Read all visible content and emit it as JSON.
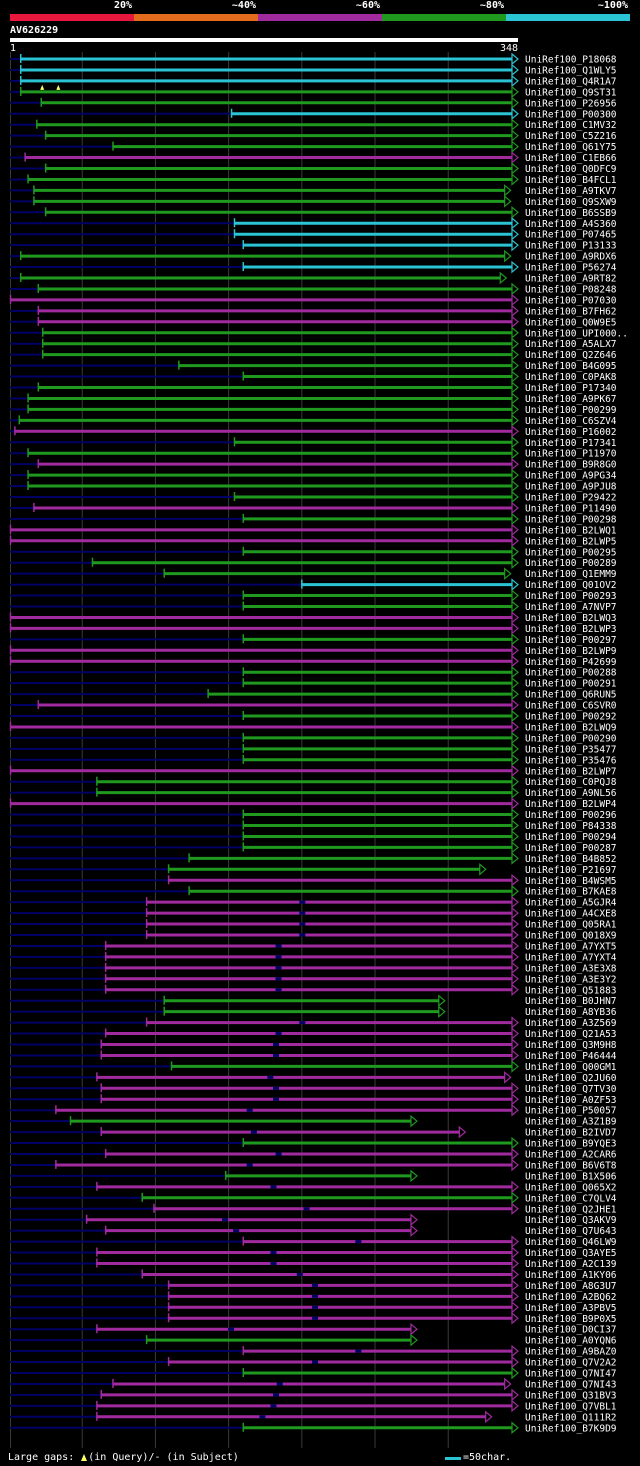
{
  "query": {
    "id": "AV626229",
    "length": 348,
    "start_label": "1",
    "end_label": "348"
  },
  "identity_scale": [
    {
      "label": "20%",
      "color": "#e8173c"
    },
    {
      "label": "~40%",
      "color": "#e46c1c"
    },
    {
      "label": "~60%",
      "color": "#a12a9f"
    },
    {
      "label": "~80%",
      "color": "#1f9a1f"
    },
    {
      "label": "~100%",
      "color": "#2bc4d4"
    }
  ],
  "colors": {
    "cyan": "#2bc4d4",
    "green": "#1f9a1f",
    "magenta": "#a12a9f",
    "gap": "#000066",
    "insert": "#ffff66",
    "grid": "#3a3a3a"
  },
  "hits": [
    {
      "name": "UniRef100_P18068",
      "c": "cyan",
      "s": 8,
      "e": 348,
      "q": [],
      "t": 0
    },
    {
      "name": "UniRef100_Q1WLY5",
      "c": "cyan",
      "s": 8,
      "e": 348,
      "q": [],
      "t": 0
    },
    {
      "name": "UniRef100_Q4R1A7",
      "c": "cyan",
      "s": 8,
      "e": 348,
      "q": [],
      "t": 0
    },
    {
      "name": "UniRef100_Q9ST31",
      "c": "green",
      "s": 8,
      "e": 348,
      "q": [
        23,
        34
      ],
      "t": 0
    },
    {
      "name": "UniRef100_P26956",
      "c": "green",
      "s": 22,
      "e": 348,
      "q": [],
      "t": 0
    },
    {
      "name": "UniRef100_P00300",
      "c": "cyan",
      "s": 152,
      "e": 348,
      "q": [],
      "t": 0
    },
    {
      "name": "UniRef100_C1MV32",
      "c": "green",
      "s": 19,
      "e": 348,
      "q": [],
      "t": 0
    },
    {
      "name": "UniRef100_C5Z216",
      "c": "green",
      "s": 25,
      "e": 348,
      "q": [],
      "t": 0
    },
    {
      "name": "UniRef100_Q61Y75",
      "c": "green",
      "s": 71,
      "e": 348,
      "q": [],
      "t": 0
    },
    {
      "name": "UniRef100_C1EB66",
      "c": "magenta",
      "s": 11,
      "e": 348,
      "q": [],
      "t": 0
    },
    {
      "name": "UniRef100_Q0DFC9",
      "c": "green",
      "s": 25,
      "e": 348,
      "q": [],
      "t": 0
    },
    {
      "name": "UniRef100_B4FCL1",
      "c": "green",
      "s": 13,
      "e": 348,
      "q": [],
      "t": 0
    },
    {
      "name": "UniRef100_A9TKV7",
      "c": "green",
      "s": 17,
      "e": 343,
      "q": [],
      "t": 0
    },
    {
      "name": "UniRef100_Q9SXW9",
      "c": "green",
      "s": 17,
      "e": 343,
      "q": [],
      "t": 0
    },
    {
      "name": "UniRef100_B6SSB9",
      "c": "green",
      "s": 25,
      "e": 348,
      "q": [],
      "t": 0
    },
    {
      "name": "UniRef100_A4S360",
      "c": "cyan",
      "s": 154,
      "e": 348,
      "q": [],
      "t": 0
    },
    {
      "name": "UniRef100_P07465",
      "c": "cyan",
      "s": 154,
      "e": 348,
      "q": [],
      "t": 0
    },
    {
      "name": "UniRef100_P13133",
      "c": "cyan",
      "s": 160,
      "e": 348,
      "q": [],
      "t": 0
    },
    {
      "name": "UniRef100_A9RDX6",
      "c": "green",
      "s": 8,
      "e": 343,
      "q": [],
      "t": 0
    },
    {
      "name": "UniRef100_P56274",
      "c": "cyan",
      "s": 160,
      "e": 348,
      "q": [],
      "t": 0
    },
    {
      "name": "UniRef100_A9RT82",
      "c": "green",
      "s": 8,
      "e": 340,
      "q": [],
      "t": 0
    },
    {
      "name": "UniRef100_P08248",
      "c": "green",
      "s": 20,
      "e": 348,
      "q": [],
      "t": 0
    },
    {
      "name": "UniRef100_P07030",
      "c": "magenta",
      "s": 1,
      "e": 348,
      "q": [],
      "t": 0
    },
    {
      "name": "UniRef100_B7FH62",
      "c": "magenta",
      "s": 20,
      "e": 348,
      "q": [],
      "t": 0
    },
    {
      "name": "UniRef100_Q0W9E5",
      "c": "magenta",
      "s": 20,
      "e": 348,
      "q": [],
      "t": 0
    },
    {
      "name": "UniRef100_UPI000..",
      "c": "green",
      "s": 23,
      "e": 348,
      "q": [],
      "t": 0
    },
    {
      "name": "UniRef100_A5ALX7",
      "c": "green",
      "s": 23,
      "e": 348,
      "q": [],
      "t": 0
    },
    {
      "name": "UniRef100_Q2Z646",
      "c": "green",
      "s": 23,
      "e": 348,
      "q": [],
      "t": 0
    },
    {
      "name": "UniRef100_B4G095",
      "c": "green",
      "s": 116,
      "e": 348,
      "q": [],
      "t": 0
    },
    {
      "name": "UniRef100_C0PAK8",
      "c": "green",
      "s": 160,
      "e": 348,
      "q": [],
      "t": 0
    },
    {
      "name": "UniRef100_P17340",
      "c": "green",
      "s": 20,
      "e": 348,
      "q": [],
      "t": 0
    },
    {
      "name": "UniRef100_A9PK67",
      "c": "green",
      "s": 13,
      "e": 348,
      "q": [],
      "t": 0
    },
    {
      "name": "UniRef100_P00299",
      "c": "green",
      "s": 13,
      "e": 348,
      "q": [],
      "t": 0
    },
    {
      "name": "UniRef100_C6SZV4",
      "c": "green",
      "s": 7,
      "e": 348,
      "q": [],
      "t": 0
    },
    {
      "name": "UniRef100_P16002",
      "c": "magenta",
      "s": 4,
      "e": 348,
      "q": [],
      "t": 0
    },
    {
      "name": "UniRef100_P17341",
      "c": "green",
      "s": 154,
      "e": 348,
      "q": [],
      "t": 0
    },
    {
      "name": "UniRef100_P11970",
      "c": "green",
      "s": 13,
      "e": 348,
      "q": [],
      "t": 0
    },
    {
      "name": "UniRef100_B9R8G0",
      "c": "magenta",
      "s": 20,
      "e": 348,
      "q": [],
      "t": 0
    },
    {
      "name": "UniRef100_A9PG34",
      "c": "green",
      "s": 13,
      "e": 348,
      "q": [],
      "t": 0
    },
    {
      "name": "UniRef100_A9PJU8",
      "c": "green",
      "s": 13,
      "e": 348,
      "q": [],
      "t": 0
    },
    {
      "name": "UniRef100_P29422",
      "c": "green",
      "s": 154,
      "e": 348,
      "q": [],
      "t": 0
    },
    {
      "name": "UniRef100_P11490",
      "c": "magenta",
      "s": 17,
      "e": 348,
      "q": [],
      "t": 0
    },
    {
      "name": "UniRef100_P00298",
      "c": "green",
      "s": 160,
      "e": 348,
      "q": [],
      "t": 0
    },
    {
      "name": "UniRef100_B2LWQ1",
      "c": "magenta",
      "s": 1,
      "e": 348,
      "q": [],
      "t": 0
    },
    {
      "name": "UniRef100_B2LWP5",
      "c": "magenta",
      "s": 1,
      "e": 348,
      "q": [],
      "t": 0
    },
    {
      "name": "UniRef100_P00295",
      "c": "green",
      "s": 160,
      "e": 348,
      "q": [],
      "t": 0
    },
    {
      "name": "UniRef100_P00289",
      "c": "green",
      "s": 57,
      "e": 348,
      "q": [],
      "t": 0
    },
    {
      "name": "UniRef100_Q1EMM9",
      "c": "green",
      "s": 106,
      "e": 343,
      "q": [],
      "t": 0
    },
    {
      "name": "UniRef100_Q01OV2",
      "c": "cyan",
      "s": 200,
      "e": 348,
      "q": [],
      "t": 0
    },
    {
      "name": "UniRef100_P00293",
      "c": "green",
      "s": 160,
      "e": 348,
      "q": [],
      "t": 0
    },
    {
      "name": "UniRef100_A7NVP7",
      "c": "green",
      "s": 160,
      "e": 348,
      "q": [],
      "t": 0
    },
    {
      "name": "UniRef100_B2LWQ3",
      "c": "magenta",
      "s": 1,
      "e": 348,
      "q": [],
      "t": 0
    },
    {
      "name": "UniRef100_B2LWP3",
      "c": "magenta",
      "s": 1,
      "e": 348,
      "q": [],
      "t": 0
    },
    {
      "name": "UniRef100_P00297",
      "c": "green",
      "s": 160,
      "e": 348,
      "q": [],
      "t": 0
    },
    {
      "name": "UniRef100_B2LWP9",
      "c": "magenta",
      "s": 1,
      "e": 348,
      "q": [],
      "t": 0
    },
    {
      "name": "UniRef100_P42699",
      "c": "magenta",
      "s": 1,
      "e": 348,
      "q": [],
      "t": 0
    },
    {
      "name": "UniRef100_P00288",
      "c": "green",
      "s": 160,
      "e": 348,
      "q": [],
      "t": 0
    },
    {
      "name": "UniRef100_P00291",
      "c": "green",
      "s": 160,
      "e": 348,
      "q": [],
      "t": 0
    },
    {
      "name": "UniRef100_Q6RUN5",
      "c": "green",
      "s": 136,
      "e": 348,
      "q": [],
      "t": 0
    },
    {
      "name": "UniRef100_C6SVR0",
      "c": "magenta",
      "s": 20,
      "e": 348,
      "q": [],
      "t": 0
    },
    {
      "name": "UniRef100_P00292",
      "c": "green",
      "s": 160,
      "e": 348,
      "q": [],
      "t": 0
    },
    {
      "name": "UniRef100_B2LWQ9",
      "c": "magenta",
      "s": 1,
      "e": 348,
      "q": [],
      "t": 0
    },
    {
      "name": "UniRef100_P00290",
      "c": "green",
      "s": 160,
      "e": 348,
      "q": [],
      "t": 0
    },
    {
      "name": "UniRef100_P35477",
      "c": "green",
      "s": 160,
      "e": 348,
      "q": [],
      "t": 0
    },
    {
      "name": "UniRef100_P35476",
      "c": "green",
      "s": 160,
      "e": 348,
      "q": [],
      "t": 0
    },
    {
      "name": "UniRef100_B2LWP7",
      "c": "magenta",
      "s": 1,
      "e": 348,
      "q": [],
      "t": 0
    },
    {
      "name": "UniRef100_C0PQJ8",
      "c": "green",
      "s": 60,
      "e": 348,
      "q": [],
      "t": 0
    },
    {
      "name": "UniRef100_A9NL56",
      "c": "green",
      "s": 60,
      "e": 348,
      "q": [],
      "t": 0
    },
    {
      "name": "UniRef100_B2LWP4",
      "c": "magenta",
      "s": 1,
      "e": 348,
      "q": [],
      "t": 0
    },
    {
      "name": "UniRef100_P00296",
      "c": "green",
      "s": 160,
      "e": 348,
      "q": [],
      "t": 0
    },
    {
      "name": "UniRef100_P84338",
      "c": "green",
      "s": 160,
      "e": 348,
      "q": [],
      "t": 0
    },
    {
      "name": "UniRef100_P00294",
      "c": "green",
      "s": 160,
      "e": 348,
      "q": [],
      "t": 0
    },
    {
      "name": "UniRef100_P00287",
      "c": "green",
      "s": 160,
      "e": 348,
      "q": [],
      "t": 0
    },
    {
      "name": "UniRef100_B4B852",
      "c": "green",
      "s": 123,
      "e": 348,
      "q": [],
      "t": 0
    },
    {
      "name": "UniRef100_P21697",
      "c": "green",
      "s": 109,
      "e": 326,
      "q": [],
      "t": 0
    },
    {
      "name": "UniRef100_B4WSM5",
      "c": "magenta",
      "s": 109,
      "e": 348,
      "q": [],
      "t": 0
    },
    {
      "name": "UniRef100_B7KAE8",
      "c": "green",
      "s": 123,
      "e": 348,
      "q": [],
      "t": 0
    },
    {
      "name": "UniRef100_A5GJR4",
      "c": "magenta",
      "s": 94,
      "e": 348,
      "q": [],
      "t": 1
    },
    {
      "name": "UniRef100_A4CXE8",
      "c": "magenta",
      "s": 94,
      "e": 348,
      "q": [],
      "t": 1
    },
    {
      "name": "UniRef100_Q05RA1",
      "c": "magenta",
      "s": 94,
      "e": 348,
      "q": [],
      "t": 1
    },
    {
      "name": "UniRef100_Q018X9",
      "c": "magenta",
      "s": 94,
      "e": 348,
      "q": [],
      "t": 1
    },
    {
      "name": "UniRef100_A7YXT5",
      "c": "magenta",
      "s": 66,
      "e": 348,
      "q": [],
      "t": 1
    },
    {
      "name": "UniRef100_A7YXT4",
      "c": "magenta",
      "s": 66,
      "e": 348,
      "q": [],
      "t": 1
    },
    {
      "name": "UniRef100_A3E3X8",
      "c": "magenta",
      "s": 66,
      "e": 348,
      "q": [],
      "t": 1
    },
    {
      "name": "UniRef100_A3E3Y2",
      "c": "magenta",
      "s": 66,
      "e": 348,
      "q": [],
      "t": 1
    },
    {
      "name": "UniRef100_Q51883",
      "c": "magenta",
      "s": 66,
      "e": 348,
      "q": [],
      "t": 1
    },
    {
      "name": "UniRef100_B0JHN7",
      "c": "green",
      "s": 106,
      "e": 298,
      "q": [],
      "t": 0
    },
    {
      "name": "UniRef100_A8YB36",
      "c": "green",
      "s": 106,
      "e": 298,
      "q": [],
      "t": 0
    },
    {
      "name": "UniRef100_A3Z569",
      "c": "magenta",
      "s": 94,
      "e": 348,
      "q": [],
      "t": 1
    },
    {
      "name": "UniRef100_Q21A53",
      "c": "magenta",
      "s": 66,
      "e": 348,
      "q": [],
      "t": 1
    },
    {
      "name": "UniRef100_Q3M9H8",
      "c": "magenta",
      "s": 63,
      "e": 348,
      "q": [],
      "t": 1
    },
    {
      "name": "UniRef100_P46444",
      "c": "magenta",
      "s": 63,
      "e": 348,
      "q": [],
      "t": 1
    },
    {
      "name": "UniRef100_Q00GM1",
      "c": "green",
      "s": 111,
      "e": 348,
      "q": [],
      "t": 0
    },
    {
      "name": "UniRef100_Q2JU60",
      "c": "magenta",
      "s": 60,
      "e": 343,
      "q": [],
      "t": 1
    },
    {
      "name": "UniRef100_Q7TV30",
      "c": "magenta",
      "s": 63,
      "e": 348,
      "q": [],
      "t": 1
    },
    {
      "name": "UniRef100_A0ZF53",
      "c": "magenta",
      "s": 63,
      "e": 348,
      "q": [],
      "t": 1
    },
    {
      "name": "UniRef100_P50057",
      "c": "magenta",
      "s": 32,
      "e": 348,
      "q": [],
      "t": 1
    },
    {
      "name": "UniRef100_A3Z1B9",
      "c": "green",
      "s": 42,
      "e": 279,
      "q": [],
      "t": 0
    },
    {
      "name": "UniRef100_B2IVD7",
      "c": "magenta",
      "s": 63,
      "e": 312,
      "q": [],
      "t": 1
    },
    {
      "name": "UniRef100_B9YQE3",
      "c": "green",
      "s": 160,
      "e": 348,
      "q": [],
      "t": 0
    },
    {
      "name": "UniRef100_A2CAR6",
      "c": "magenta",
      "s": 66,
      "e": 348,
      "q": [],
      "t": 1
    },
    {
      "name": "UniRef100_B6V6T8",
      "c": "magenta",
      "s": 32,
      "e": 348,
      "q": [],
      "t": 1
    },
    {
      "name": "UniRef100_B1X506",
      "c": "green",
      "s": 148,
      "e": 279,
      "q": [],
      "t": 0
    },
    {
      "name": "UniRef100_Q065X2",
      "c": "magenta",
      "s": 60,
      "e": 348,
      "q": [],
      "t": 1
    },
    {
      "name": "UniRef100_C7QLV4",
      "c": "green",
      "s": 91,
      "e": 348,
      "q": [],
      "t": 0
    },
    {
      "name": "UniRef100_Q2JHE1",
      "c": "magenta",
      "s": 99,
      "e": 348,
      "q": [],
      "t": 1
    },
    {
      "name": "UniRef100_Q3AKV9",
      "c": "magenta",
      "s": 53,
      "e": 279,
      "q": [],
      "t": 1
    },
    {
      "name": "UniRef100_Q7U643",
      "c": "magenta",
      "s": 66,
      "e": 279,
      "q": [],
      "t": 1
    },
    {
      "name": "UniRef100_Q46LW9",
      "c": "magenta",
      "s": 160,
      "e": 348,
      "q": [],
      "t": 1
    },
    {
      "name": "UniRef100_Q3AYE5",
      "c": "magenta",
      "s": 60,
      "e": 348,
      "q": [],
      "t": 1
    },
    {
      "name": "UniRef100_A2C139",
      "c": "magenta",
      "s": 60,
      "e": 348,
      "q": [],
      "t": 1
    },
    {
      "name": "UniRef100_A1KY06",
      "c": "magenta",
      "s": 91,
      "e": 348,
      "q": [],
      "t": 1
    },
    {
      "name": "UniRef100_A8G3U7",
      "c": "magenta",
      "s": 109,
      "e": 348,
      "q": [],
      "t": 1
    },
    {
      "name": "UniRef100_A2BQ62",
      "c": "magenta",
      "s": 109,
      "e": 348,
      "q": [],
      "t": 1
    },
    {
      "name": "UniRef100_A3PBV5",
      "c": "magenta",
      "s": 109,
      "e": 348,
      "q": [],
      "t": 1
    },
    {
      "name": "UniRef100_B9P0X5",
      "c": "magenta",
      "s": 109,
      "e": 348,
      "q": [],
      "t": 1
    },
    {
      "name": "UniRef100_D0CI37",
      "c": "magenta",
      "s": 60,
      "e": 279,
      "q": [],
      "t": 1
    },
    {
      "name": "UniRef100_A0YQN6",
      "c": "green",
      "s": 94,
      "e": 279,
      "q": [],
      "t": 0
    },
    {
      "name": "UniRef100_A9BAZ0",
      "c": "magenta",
      "s": 160,
      "e": 348,
      "q": [],
      "t": 1
    },
    {
      "name": "UniRef100_Q7V2A2",
      "c": "magenta",
      "s": 109,
      "e": 348,
      "q": [],
      "t": 1
    },
    {
      "name": "UniRef100_Q7NI47",
      "c": "green",
      "s": 160,
      "e": 348,
      "q": [],
      "t": 0
    },
    {
      "name": "UniRef100_Q7NI43",
      "c": "magenta",
      "s": 71,
      "e": 343,
      "q": [],
      "t": 1
    },
    {
      "name": "UniRef100_Q31BV3",
      "c": "magenta",
      "s": 63,
      "e": 348,
      "q": [],
      "t": 1
    },
    {
      "name": "UniRef100_Q7VBL1",
      "c": "magenta",
      "s": 60,
      "e": 348,
      "q": [],
      "t": 1
    },
    {
      "name": "UniRef100_Q111R2",
      "c": "magenta",
      "s": 60,
      "e": 330,
      "q": [],
      "t": 1
    },
    {
      "name": "UniRef100_B7K9D9",
      "c": "green",
      "s": 160,
      "e": 348,
      "q": [],
      "t": 0
    }
  ],
  "footer": {
    "legend": "Large gaps: ",
    "in_query": "(in Query)/",
    "gap_dash": "-",
    "in_subject": " (in Subject)",
    "scale_label": "=50char."
  }
}
